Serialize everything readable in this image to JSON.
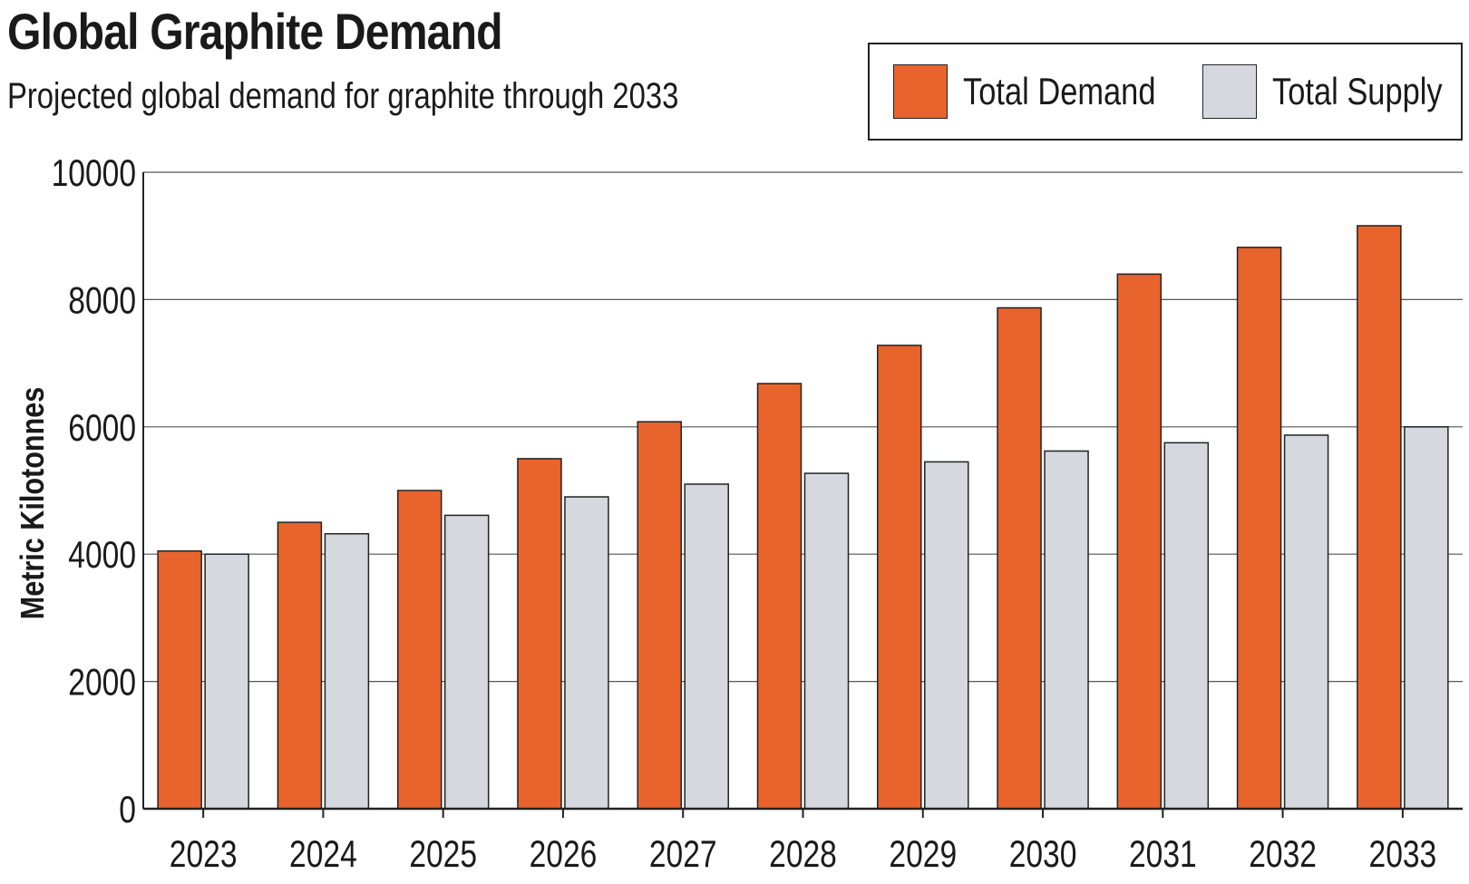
{
  "header": {
    "title": "Global Graphite Demand",
    "subtitle": "Projected global demand for graphite through 2033"
  },
  "chart_data": {
    "type": "bar",
    "categories": [
      "2023",
      "2024",
      "2025",
      "2026",
      "2027",
      "2028",
      "2029",
      "2030",
      "2031",
      "2032",
      "2033"
    ],
    "series": [
      {
        "name": "Total Demand",
        "color": "#e8642c",
        "values": [
          4050,
          4500,
          5000,
          5500,
          6080,
          6680,
          7280,
          7870,
          8400,
          8820,
          9160
        ]
      },
      {
        "name": "Total Supply",
        "color": "#d5d9df",
        "values": [
          4000,
          4320,
          4610,
          4900,
          5100,
          5270,
          5450,
          5620,
          5750,
          5870,
          6000
        ]
      }
    ],
    "title": "Global Graphite Demand",
    "subtitle": "Projected global demand for graphite through 2033",
    "xlabel": "",
    "ylabel": "Metric Kilotonnes",
    "ylim": [
      0,
      10000
    ],
    "yticks": [
      "0",
      "2000",
      "4000",
      "6000",
      "8000",
      "10000"
    ],
    "grid": true,
    "legend": "top-right"
  }
}
